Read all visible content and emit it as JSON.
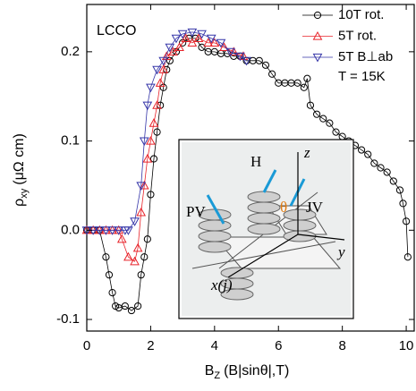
{
  "chart_data": {
    "type": "line",
    "annotation": "LCCO",
    "ylabel": "ρ",
    "ylabel_sub": "xy",
    "ylabel_unit": "(μΩ cm)",
    "xlabel": "B",
    "xlabel_sub": "Z",
    "xlabel_unit": "(B|sinθ|,T)",
    "xlim": [
      0,
      10.25
    ],
    "ylim": [
      -0.113,
      0.253
    ],
    "xticks": [
      0,
      2,
      4,
      6,
      8,
      10
    ],
    "yticks": [
      -0.1,
      {
        "value": 0,
        "label": "0.0"
      },
      0.1,
      0.2
    ],
    "legend_position": "upper right",
    "legend_note": "T = 15K",
    "series": [
      {
        "name": "10T rot.",
        "color": "#000000",
        "marker": "circle",
        "x": [
          0,
          0.2,
          0.4,
          0.6,
          0.7,
          0.8,
          0.9,
          1.0,
          1.2,
          1.4,
          1.6,
          1.7,
          1.8,
          1.9,
          2.0,
          2.1,
          2.2,
          2.3,
          2.4,
          2.5,
          2.6,
          2.8,
          3.0,
          3.2,
          3.4,
          3.6,
          3.8,
          4.0,
          4.2,
          4.4,
          4.6,
          4.8,
          5.0,
          5.2,
          5.4,
          5.6,
          5.8,
          6.0,
          6.2,
          6.4,
          6.6,
          6.8,
          6.9,
          7.0,
          7.2,
          7.4,
          7.6,
          7.8,
          8.0,
          8.2,
          8.4,
          8.6,
          8.8,
          9.0,
          9.2,
          9.4,
          9.6,
          9.8,
          9.9,
          10.0,
          10.05
        ],
        "values": [
          0,
          0,
          0,
          -0.03,
          -0.05,
          -0.07,
          -0.085,
          -0.087,
          -0.085,
          -0.09,
          -0.085,
          -0.05,
          -0.03,
          -0.01,
          0.04,
          0.08,
          0.11,
          0.14,
          0.16,
          0.18,
          0.19,
          0.2,
          0.21,
          0.215,
          0.215,
          0.205,
          0.2,
          0.2,
          0.198,
          0.198,
          0.195,
          0.195,
          0.19,
          0.19,
          0.19,
          0.185,
          0.175,
          0.165,
          0.165,
          0.165,
          0.165,
          0.16,
          0.17,
          0.14,
          0.13,
          0.125,
          0.12,
          0.11,
          0.105,
          0.1,
          0.095,
          0.09,
          0.085,
          0.075,
          0.07,
          0.065,
          0.055,
          0.045,
          0.03,
          0.01,
          -0.03
        ]
      },
      {
        "name": "5T rot.",
        "color": "#e8232a",
        "marker": "triangle-up",
        "x": [
          0,
          0.2,
          0.4,
          0.6,
          0.8,
          1.0,
          1.1,
          1.3,
          1.5,
          1.6,
          1.7,
          1.8,
          1.9,
          2.0,
          2.1,
          2.2,
          2.3,
          2.4,
          2.5,
          2.7,
          2.9,
          3.1,
          3.3,
          3.5,
          3.8,
          4.0,
          4.3,
          4.6,
          4.9
        ],
        "values": [
          0,
          0,
          0,
          0,
          0,
          0,
          -0.01,
          -0.03,
          -0.035,
          -0.02,
          0.02,
          0.05,
          0.08,
          0.1,
          0.12,
          0.14,
          0.165,
          0.18,
          0.195,
          0.2,
          0.205,
          0.215,
          0.21,
          0.215,
          0.21,
          0.21,
          0.205,
          0.2,
          0.195
        ]
      },
      {
        "name": "5T B⊥ab",
        "color": "#3535a8",
        "marker": "triangle-down",
        "x": [
          0,
          0.2,
          0.4,
          0.6,
          0.8,
          1.0,
          1.2,
          1.3,
          1.5,
          1.7,
          1.8,
          1.9,
          2.0,
          2.2,
          2.4,
          2.6,
          2.8,
          3.0,
          3.3,
          3.6,
          3.9,
          4.2,
          4.5,
          4.8,
          5.0
        ],
        "values": [
          0,
          0,
          0,
          0,
          0,
          0,
          0,
          0,
          0.01,
          0.05,
          0.1,
          0.14,
          0.16,
          0.18,
          0.19,
          0.205,
          0.215,
          0.22,
          0.222,
          0.22,
          0.215,
          0.21,
          0.2,
          0.195,
          0.19
        ]
      }
    ],
    "inset": {
      "labels": [
        "z",
        "H",
        "PV",
        "θ",
        "JV",
        "y",
        "x(j)"
      ]
    }
  }
}
